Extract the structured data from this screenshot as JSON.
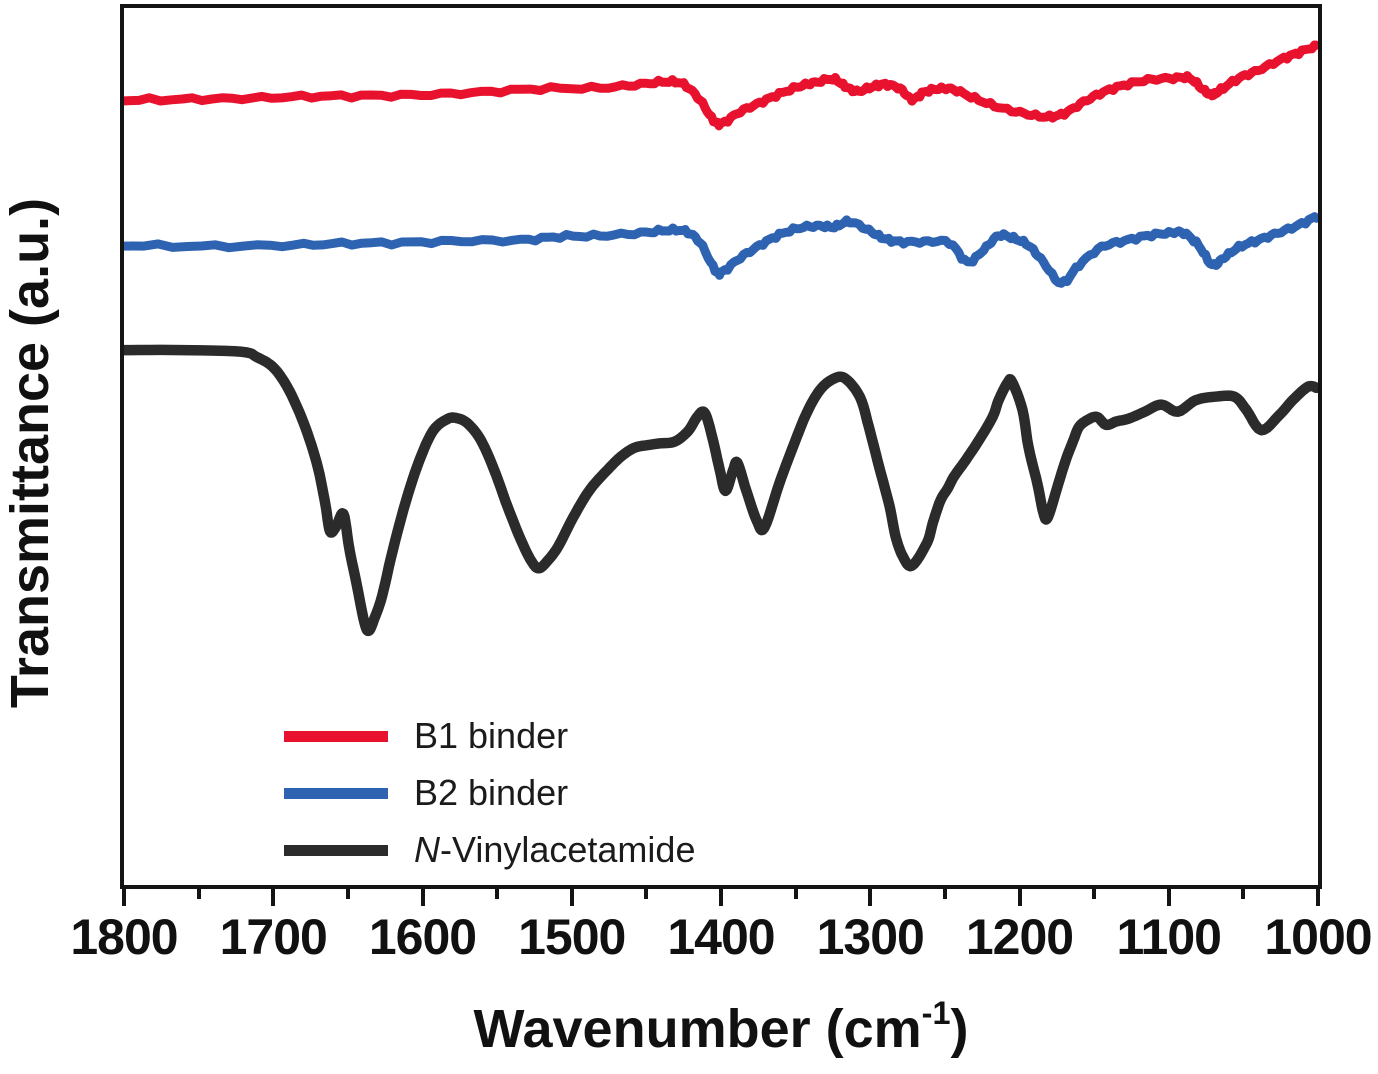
{
  "figure": {
    "ylabel": "Transmittance (a.u.)",
    "xlabel_prefix": "Wavenumber (cm",
    "xlabel_sup": "-1",
    "xlabel_suffix": ")"
  },
  "colors": {
    "axis": "#141414",
    "b1_red": "#e8122f",
    "b2_blue": "#2e63b2",
    "nva_black": "#2b2b2b"
  },
  "chart_data": {
    "type": "line",
    "title": "",
    "xlabel": "Wavenumber (cm^-1)",
    "ylabel": "Transmittance (a.u.)",
    "grid": false,
    "legend_position": "inside bottom-left",
    "x_axis": {
      "min": 1000,
      "max": 1800,
      "reversed": true,
      "major_ticks": [
        1800,
        1700,
        1600,
        1500,
        1400,
        1300,
        1200,
        1100,
        1000
      ],
      "minor_tick_step": 50
    },
    "y_axis": {
      "units": "arbitrary units",
      "range": [
        0,
        100
      ],
      "ticks": "none"
    },
    "series": [
      {
        "id": "b1",
        "name": "B1 binder",
        "name_parts": [
          {
            "text": "B1 binder",
            "italic": false
          }
        ],
        "color": "#e8122f",
        "stroke_width": 9,
        "noise": 1.3,
        "x": [
          1800,
          1761,
          1721,
          1681,
          1641,
          1601,
          1561,
          1521,
          1481,
          1454,
          1437,
          1425,
          1414,
          1405,
          1399,
          1387,
          1374,
          1361,
          1347,
          1337,
          1325,
          1317,
          1309,
          1299,
          1290,
          1280,
          1272,
          1264,
          1254,
          1244,
          1230,
          1214,
          1197,
          1182,
          1170,
          1157,
          1144,
          1130,
          1114,
          1097,
          1086,
          1077,
          1071,
          1065,
          1053,
          1040,
          1025,
          1013,
          1001
        ],
        "t": [
          89.3,
          89.4,
          89.5,
          89.7,
          89.8,
          89.9,
          90.2,
          90.6,
          90.7,
          91.1,
          91.4,
          91.1,
          89.3,
          87.0,
          86.7,
          88.0,
          89.0,
          90.0,
          90.9,
          91.3,
          91.7,
          90.9,
          90.3,
          90.8,
          91.1,
          90.6,
          89.4,
          90.2,
          90.6,
          90.5,
          89.5,
          88.5,
          87.8,
          87.4,
          87.8,
          89.1,
          90.2,
          91.0,
          91.6,
          91.8,
          91.8,
          90.5,
          89.9,
          90.5,
          91.8,
          92.7,
          93.9,
          94.7,
          95.5
        ]
      },
      {
        "id": "b2",
        "name": "B2 binder",
        "name_parts": [
          {
            "text": "B2 binder",
            "italic": false
          }
        ],
        "color": "#2e63b2",
        "stroke_width": 9,
        "noise": 1.3,
        "x": [
          1800,
          1748,
          1694,
          1654,
          1614,
          1574,
          1534,
          1508,
          1481,
          1454,
          1437,
          1424,
          1414,
          1404,
          1399,
          1387,
          1374,
          1361,
          1347,
          1334,
          1324,
          1314,
          1301,
          1291,
          1280,
          1264,
          1247,
          1235,
          1224,
          1214,
          1204,
          1194,
          1184,
          1172,
          1160,
          1145,
          1130,
          1114,
          1100,
          1090,
          1080,
          1071,
          1063,
          1053,
          1040,
          1027,
          1013,
          1001
        ],
        "t": [
          72.8,
          72.7,
          72.8,
          73.0,
          73.1,
          73.3,
          73.4,
          73.8,
          73.9,
          74.2,
          74.5,
          74.4,
          73.1,
          70.0,
          69.8,
          71.4,
          72.8,
          74.0,
          74.8,
          75.0,
          74.9,
          75.5,
          74.5,
          73.6,
          73.2,
          73.2,
          73.1,
          70.9,
          72.3,
          73.9,
          73.6,
          72.8,
          70.9,
          68.5,
          70.6,
          72.6,
          73.3,
          73.9,
          74.2,
          74.2,
          72.8,
          70.6,
          71.4,
          72.6,
          73.4,
          74.2,
          75.1,
          76.1
        ]
      },
      {
        "id": "nva",
        "name": "N-Vinylacetamide",
        "name_parts": [
          {
            "text": "N",
            "italic": true
          },
          {
            "text": "-Vinylacetamide",
            "italic": false
          }
        ],
        "color": "#2b2b2b",
        "stroke_width": 10.5,
        "noise": 0,
        "x": [
          1800,
          1761,
          1721,
          1711,
          1701,
          1693,
          1685,
          1677,
          1670,
          1665,
          1662,
          1658,
          1653,
          1649,
          1644,
          1639,
          1636,
          1632,
          1627,
          1620,
          1611,
          1602,
          1593,
          1584,
          1578,
          1570,
          1561,
          1552,
          1543,
          1534,
          1527,
          1522,
          1516,
          1509,
          1499,
          1488,
          1476,
          1467,
          1458,
          1449,
          1441,
          1431,
          1422,
          1416,
          1411,
          1406,
          1401,
          1397,
          1392,
          1389,
          1383,
          1376,
          1371,
          1361,
          1352,
          1343,
          1334,
          1325,
          1317,
          1307,
          1301,
          1294,
          1287,
          1283,
          1278,
          1272,
          1262,
          1258,
          1253,
          1248,
          1244,
          1236,
          1227,
          1218,
          1214,
          1208,
          1205,
          1198,
          1194,
          1188,
          1184,
          1181,
          1174,
          1169,
          1164,
          1160,
          1154,
          1148,
          1142,
          1135,
          1127,
          1116,
          1105,
          1094,
          1082,
          1069,
          1056,
          1048,
          1038,
          1026,
          1017,
          1008,
          1004,
          1001
        ],
        "t": [
          60.9,
          60.9,
          60.7,
          60.1,
          59.1,
          57.4,
          54.8,
          51.4,
          47.5,
          43.3,
          40.3,
          40.8,
          42.3,
          38.3,
          34.2,
          30.0,
          29.0,
          30.5,
          33.0,
          38.1,
          43.8,
          48.4,
          51.7,
          53.0,
          53.2,
          52.6,
          50.7,
          47.3,
          43.1,
          39.3,
          36.9,
          36.1,
          37.0,
          38.6,
          41.9,
          45.0,
          47.3,
          48.8,
          49.8,
          50.1,
          50.3,
          50.5,
          51.7,
          53.3,
          53.8,
          51.1,
          47.4,
          44.9,
          47.2,
          48.1,
          44.9,
          41.5,
          40.7,
          45.7,
          49.8,
          53.6,
          56.3,
          57.6,
          57.7,
          55.6,
          52.2,
          47.6,
          43.1,
          39.7,
          37.4,
          36.4,
          39.0,
          41.3,
          43.8,
          45.2,
          46.5,
          48.4,
          50.7,
          53.3,
          55.2,
          57.2,
          57.3,
          54.1,
          49.9,
          45.7,
          42.4,
          41.9,
          45.7,
          48.4,
          50.6,
          52.2,
          53.0,
          53.3,
          52.4,
          52.8,
          53.1,
          53.9,
          54.7,
          53.9,
          55.2,
          55.6,
          55.6,
          54.1,
          51.8,
          53.5,
          55.2,
          56.6,
          56.8,
          56.6
        ]
      }
    ]
  }
}
